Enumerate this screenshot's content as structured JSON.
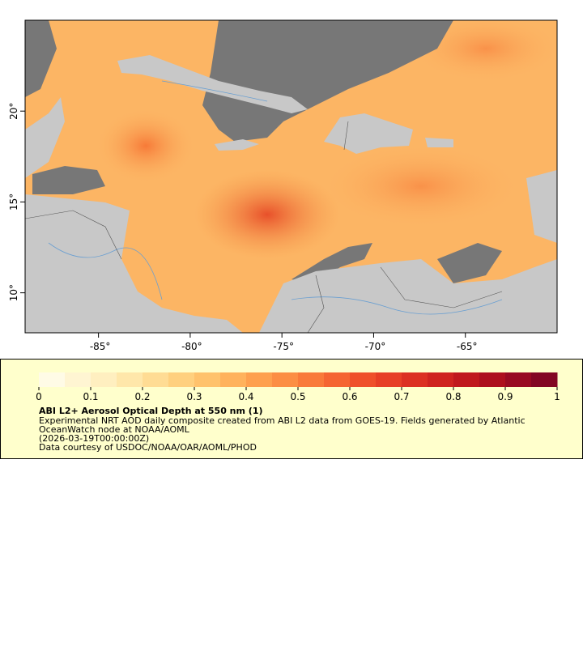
{
  "map": {
    "xlim": [
      -89,
      -60
    ],
    "ylim": [
      7.8,
      25
    ],
    "xticks": [
      {
        "value": -85,
        "label": "-85°"
      },
      {
        "value": -80,
        "label": "-80°"
      },
      {
        "value": -75,
        "label": "-75°"
      },
      {
        "value": -70,
        "label": "-70°"
      },
      {
        "value": -65,
        "label": "-65°"
      }
    ],
    "yticks": [
      {
        "value": 10,
        "label": "10°"
      },
      {
        "value": 15,
        "label": "15°"
      },
      {
        "value": 20,
        "label": "20°"
      }
    ]
  },
  "colorbar": {
    "range": [
      0,
      1
    ],
    "ticks": [
      0,
      0.1,
      0.2,
      0.3,
      0.4,
      0.5,
      0.6,
      0.7,
      0.8,
      0.9,
      1
    ],
    "colors": [
      "#fffbe6",
      "#fff5d2",
      "#ffefc0",
      "#ffe7aa",
      "#ffdc94",
      "#ffd07e",
      "#ffc26c",
      "#ffb25c",
      "#fea04e",
      "#fc8e44",
      "#f97a3a",
      "#f56532",
      "#ef502b",
      "#e73f26",
      "#dc3022",
      "#cf231f",
      "#c0181d",
      "#ad0f1e",
      "#980a22",
      "#830623"
    ]
  },
  "legend": {
    "title": "ABI L2+ Aerosol Optical Depth at 550 nm (1)",
    "lines": [
      "Experimental NRT AOD daily composite created from ABI L2 data from GOES-19. Fields generated by Atlantic",
      "OceanWatch node at NOAA/AOML",
      "(2026-03-19T00:00:00Z)",
      "Data courtesy of USDOC/NOAA/OAR/AOML/PHOD"
    ]
  }
}
